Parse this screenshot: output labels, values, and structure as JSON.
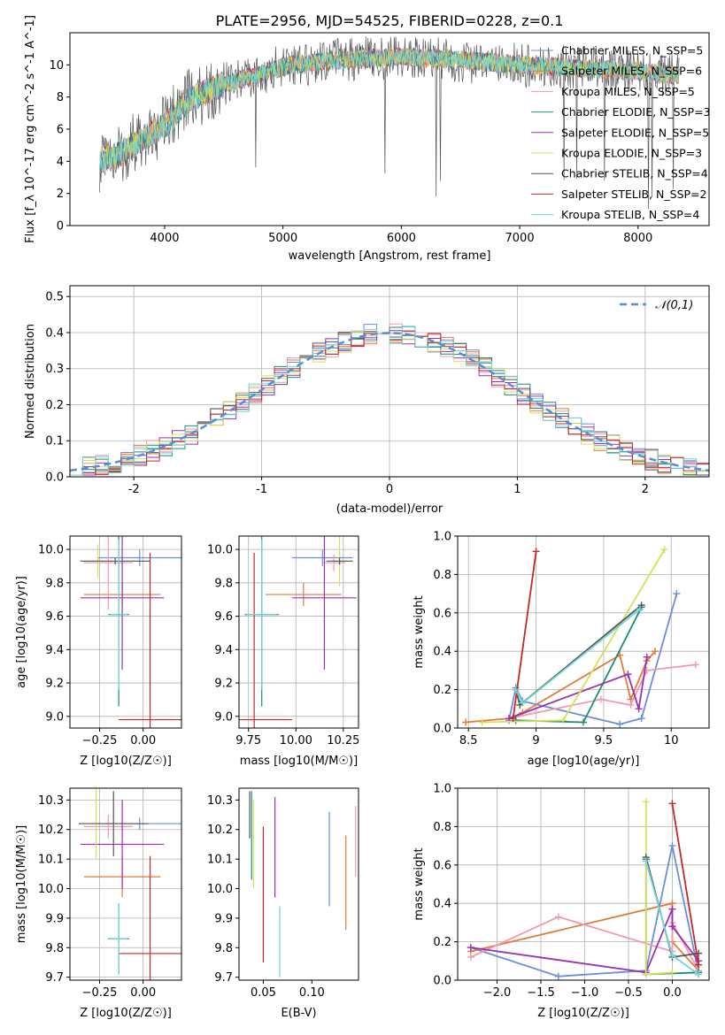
{
  "figure_title": "PLATE=2956, MJD=54525, FIBERID=0228, z=0.1",
  "series_colors": [
    "#6a8fd8",
    "#e07b39",
    "#f09ab0",
    "#1a8c7a",
    "#9b30b0",
    "#d4e157",
    "#555555",
    "#c62828",
    "#6fd6d6"
  ],
  "spectrum_legend": [
    "Chabrier MILES, N_SSP=5",
    "Salpeter MILES, N_SSP=6",
    "Kroupa MILES, N_SSP=5",
    "Chabrier ELODIE, N_SSP=3",
    "Salpeter ELODIE, N_SSP=5",
    "Kroupa ELODIE, N_SSP=3",
    "Chabrier STELIB, N_SSP=4",
    "Salpeter STELIB, N_SSP=2",
    "Kroupa STELIB, N_SSP=4"
  ],
  "chart_data": [
    {
      "type": "line",
      "panel": "spectrum",
      "xlabel": "wavelength [Angstrom, rest frame]",
      "ylabel": "Flux [f_λ 10^-17 erg cm^-2 s^-1 A^-1]",
      "xlim": [
        3200,
        8600
      ],
      "ylim": [
        0,
        12
      ],
      "xticks": [
        4000,
        5000,
        6000,
        7000,
        8000
      ],
      "yticks": [
        0,
        2,
        4,
        6,
        8,
        10
      ],
      "legend_position": "right",
      "wavelength_range": [
        3450,
        8350
      ],
      "continuum": {
        "x": [
          3450,
          3600,
          3800,
          4000,
          4200,
          4500,
          4800,
          5000,
          5500,
          6000,
          6500,
          7000,
          7500,
          8000,
          8350
        ],
        "y": [
          4.0,
          4.4,
          5.3,
          6.2,
          7.8,
          8.8,
          9.4,
          9.9,
          10.3,
          10.5,
          10.3,
          10.0,
          9.8,
          9.6,
          9.3
        ]
      },
      "grid": false
    },
    {
      "type": "histogram",
      "panel": "residuals",
      "xlabel": "(data-model)/error",
      "ylabel": "Normed distribution",
      "xlim": [
        -2.5,
        2.5
      ],
      "ylim": [
        0,
        0.53
      ],
      "xticks": [
        -2,
        -1,
        0,
        1,
        2
      ],
      "yticks": [
        0.0,
        0.1,
        0.2,
        0.3,
        0.4,
        0.5
      ],
      "reference_label": "𝒩(0,1)",
      "reference_color": "#5b8bd9",
      "legend_position": "upper right",
      "bin_width": 0.1,
      "grid": true
    },
    {
      "type": "scatter",
      "panel": "age_vs_Z",
      "xlabel": "Z [log10(Z/Z☉)]",
      "ylabel": "age [log10(age/yr)]",
      "xlim": [
        -0.42,
        0.22
      ],
      "ylim": [
        8.93,
        10.08
      ],
      "xticks": [
        -0.25,
        0.0
      ],
      "xtick_labels": [
        "−0.25",
        "0.00"
      ],
      "yticks": [
        9.0,
        9.2,
        9.4,
        9.6,
        9.8,
        10.0
      ],
      "points": [
        {
          "x": -0.02,
          "y": 9.95,
          "xerr": 0.24,
          "yerr": 0.05
        },
        {
          "x": -0.12,
          "y": 9.73,
          "xerr": 0.22,
          "yerr": 0.07
        },
        {
          "x": -0.2,
          "y": 9.92,
          "xerr": 0.14,
          "yerr": 0.28
        },
        {
          "x": -0.14,
          "y": 9.61,
          "xerr": 0.06,
          "yerr": 0.55
        },
        {
          "x": -0.12,
          "y": 9.71,
          "xerr": 0.24,
          "yerr": 0.43
        },
        {
          "x": -0.26,
          "y": 9.93,
          "xerr": 0.08,
          "yerr": 0.1
        },
        {
          "x": -0.16,
          "y": 9.93,
          "xerr": 0.2,
          "yerr": 0.02
        },
        {
          "x": 0.04,
          "y": 8.98,
          "xerr": 0.18,
          "yerr": 1.0
        },
        {
          "x": -0.14,
          "y": 9.61,
          "xerr": 0.05,
          "yerr": 0.45
        }
      ],
      "grid": true
    },
    {
      "type": "scatter",
      "panel": "age_vs_mass",
      "xlabel": "mass [log10(M/M☉)]",
      "ylabel": "",
      "xlim": [
        9.7,
        10.33
      ],
      "ylim": [
        8.93,
        10.08
      ],
      "xticks": [
        9.75,
        10.0,
        10.25
      ],
      "xtick_labels": [
        "9.75",
        "10.00",
        "10.25"
      ],
      "yticks": [
        9.0,
        9.2,
        9.4,
        9.6,
        9.8,
        10.0
      ],
      "points": [
        {
          "x": 10.14,
          "y": 9.95,
          "xerr": 0.16,
          "yerr": 0.05
        },
        {
          "x": 10.04,
          "y": 9.73,
          "xerr": 0.2,
          "yerr": 0.07
        },
        {
          "x": 10.2,
          "y": 9.92,
          "xerr": 0.06,
          "yerr": 0.05
        },
        {
          "x": 9.82,
          "y": 9.61,
          "xerr": 0.09,
          "yerr": 0.55
        },
        {
          "x": 10.15,
          "y": 9.71,
          "xerr": 0.17,
          "yerr": 0.43
        },
        {
          "x": 10.23,
          "y": 9.93,
          "xerr": 0.04,
          "yerr": 0.15
        },
        {
          "x": 10.23,
          "y": 9.93,
          "xerr": 0.07,
          "yerr": 0.02
        },
        {
          "x": 9.78,
          "y": 8.98,
          "xerr": 0.2,
          "yerr": 1.0
        },
        {
          "x": 9.82,
          "y": 9.61,
          "xerr": 0.08,
          "yerr": 0.45
        }
      ],
      "grid": true
    },
    {
      "type": "line",
      "panel": "massweight_vs_age",
      "xlabel": "age [log10(age/yr)]",
      "ylabel": "mass weight",
      "xlim": [
        8.42,
        10.28
      ],
      "ylim": [
        0,
        1.0
      ],
      "xticks": [
        8.5,
        9.0,
        9.5,
        10.0
      ],
      "yticks": [
        0.0,
        0.2,
        0.4,
        0.6,
        0.8,
        1.0
      ],
      "series": [
        {
          "x": [
            8.8,
            8.85,
            8.9,
            9.62,
            9.78,
            10.04
          ],
          "y": [
            0.04,
            0.21,
            0.14,
            0.02,
            0.05,
            0.7
          ]
        },
        {
          "x": [
            8.48,
            8.8,
            8.9,
            9.62,
            9.7,
            9.82,
            9.88
          ],
          "y": [
            0.03,
            0.05,
            0.08,
            0.38,
            0.15,
            0.35,
            0.4
          ]
        },
        {
          "x": [
            8.8,
            9.48,
            9.7,
            9.82,
            10.18
          ],
          "y": [
            0.05,
            0.15,
            0.12,
            0.3,
            0.33
          ]
        },
        {
          "x": [
            8.85,
            9.35,
            9.78
          ],
          "y": [
            0.04,
            0.03,
            0.63
          ]
        },
        {
          "x": [
            8.8,
            9.68,
            9.76,
            9.82
          ],
          "y": [
            0.05,
            0.28,
            0.1,
            0.37
          ]
        },
        {
          "x": [
            8.6,
            9.2,
            9.95
          ],
          "y": [
            0.03,
            0.04,
            0.93
          ]
        },
        {
          "x": [
            8.85,
            8.88,
            9.78
          ],
          "y": [
            0.2,
            0.12,
            0.64
          ]
        },
        {
          "x": [
            8.83,
            9.0
          ],
          "y": [
            0.05,
            0.92
          ]
        },
        {
          "x": [
            8.85,
            8.9,
            9.77
          ],
          "y": [
            0.2,
            0.13,
            0.62
          ]
        }
      ],
      "grid": true
    },
    {
      "type": "scatter",
      "panel": "mass_vs_Z",
      "xlabel": "Z [log10(Z/Z☉)]",
      "ylabel": "mass [log10(M/M☉)]",
      "xlim": [
        -0.42,
        0.22
      ],
      "ylim": [
        9.69,
        10.34
      ],
      "xticks": [
        -0.25,
        0.0
      ],
      "xtick_labels": [
        "−0.25",
        "0.00"
      ],
      "yticks": [
        9.7,
        9.8,
        9.9,
        10.0,
        10.1,
        10.2,
        10.3
      ],
      "points": [
        {
          "x": -0.02,
          "y": 10.22,
          "xerr": 0.24,
          "yerr": 0.02
        },
        {
          "x": -0.12,
          "y": 10.04,
          "xerr": 0.22,
          "yerr": 0.07
        },
        {
          "x": -0.2,
          "y": 10.21,
          "xerr": 0.14,
          "yerr": 0.04
        },
        {
          "x": -0.14,
          "y": 9.83,
          "xerr": 0.06,
          "yerr": 0.12
        },
        {
          "x": -0.12,
          "y": 10.15,
          "xerr": 0.24,
          "yerr": 0.15
        },
        {
          "x": -0.27,
          "y": 10.22,
          "xerr": 0.08,
          "yerr": 0.12
        },
        {
          "x": -0.17,
          "y": 10.22,
          "xerr": 0.2,
          "yerr": 0.11
        },
        {
          "x": 0.04,
          "y": 9.78,
          "xerr": 0.18,
          "yerr": 0.33
        },
        {
          "x": -0.14,
          "y": 9.83,
          "xerr": 0.05,
          "yerr": 0.12
        }
      ],
      "grid": true
    },
    {
      "type": "scatter",
      "panel": "mass_vs_EBV",
      "xlabel": "E(B-V)",
      "ylabel": "",
      "xlim": [
        0.025,
        0.148
      ],
      "ylim": [
        9.69,
        10.34
      ],
      "xticks": [
        0.05,
        0.1
      ],
      "xtick_labels": [
        "0.05",
        "0.10"
      ],
      "yticks": [
        9.7,
        9.8,
        9.9,
        10.0,
        10.1,
        10.2,
        10.3
      ],
      "points": [
        {
          "x": 0.118,
          "y": 10.1,
          "yerr": 0.16
        },
        {
          "x": 0.135,
          "y": 10.02,
          "yerr": 0.16
        },
        {
          "x": 0.145,
          "y": 10.16,
          "yerr": 0.12
        },
        {
          "x": 0.038,
          "y": 10.18,
          "yerr": 0.15
        },
        {
          "x": 0.062,
          "y": 10.14,
          "yerr": 0.17
        },
        {
          "x": 0.04,
          "y": 10.15,
          "yerr": 0.15
        },
        {
          "x": 0.036,
          "y": 10.25,
          "yerr": 0.08
        },
        {
          "x": 0.05,
          "y": 9.98,
          "yerr": 0.23
        },
        {
          "x": 0.067,
          "y": 9.82,
          "yerr": 0.12
        }
      ],
      "grid": false
    },
    {
      "type": "line",
      "panel": "massweight_vs_Z",
      "xlabel": "Z [log10(Z/Z☉)]",
      "ylabel": "mass weight",
      "xlim": [
        -2.45,
        0.42
      ],
      "ylim": [
        0,
        1.0
      ],
      "xticks": [
        -2.0,
        -1.5,
        -1.0,
        -0.5,
        0.0
      ],
      "xtick_labels": [
        "−2.0",
        "−1.5",
        "−1.0",
        "−0.5",
        "0.0"
      ],
      "yticks": [
        0.0,
        0.2,
        0.4,
        0.6,
        0.8,
        1.0
      ],
      "series": [
        {
          "x": [
            -2.3,
            -1.3,
            -0.3,
            0.0,
            0.3
          ],
          "y": [
            0.17,
            0.02,
            0.05,
            0.7,
            0.04
          ]
        },
        {
          "x": [
            -2.3,
            0.0,
            0.0,
            0.3
          ],
          "y": [
            0.15,
            0.4,
            0.2,
            0.05
          ]
        },
        {
          "x": [
            -2.3,
            -1.3,
            0.0,
            0.0,
            0.3
          ],
          "y": [
            0.12,
            0.33,
            0.15,
            0.3,
            0.05
          ]
        },
        {
          "x": [
            -0.3,
            -0.3,
            0.3
          ],
          "y": [
            0.63,
            0.03,
            0.04
          ]
        },
        {
          "x": [
            -2.3,
            -0.3,
            0.0,
            0.0,
            0.3
          ],
          "y": [
            0.17,
            0.04,
            0.37,
            0.28,
            0.1
          ]
        },
        {
          "x": [
            -0.3,
            -0.3,
            0.0
          ],
          "y": [
            0.93,
            0.03,
            0.04
          ]
        },
        {
          "x": [
            -0.3,
            0.0,
            0.3
          ],
          "y": [
            0.64,
            0.12,
            0.14
          ]
        },
        {
          "x": [
            0.0,
            0.3
          ],
          "y": [
            0.92,
            0.08
          ]
        },
        {
          "x": [
            -0.3,
            0.0,
            0.3
          ],
          "y": [
            0.62,
            0.13,
            0.03
          ]
        }
      ],
      "grid": true
    }
  ]
}
